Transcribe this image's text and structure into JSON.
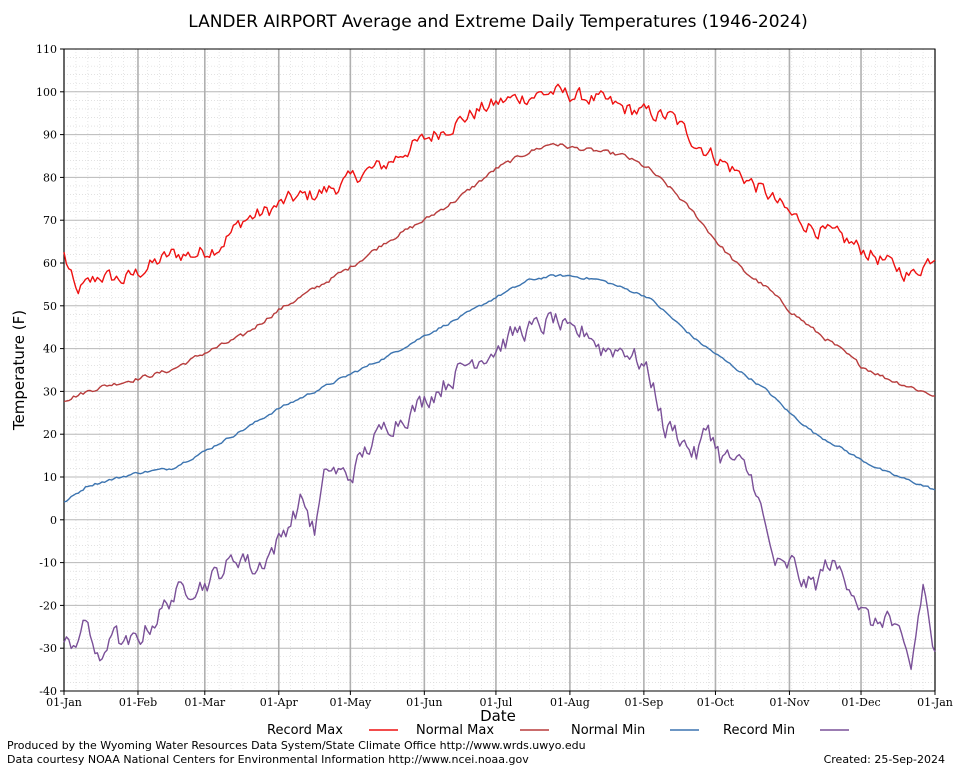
{
  "chart_data": {
    "type": "line",
    "title": "LANDER AIRPORT Average and Extreme Daily Temperatures (1946-2024)",
    "xlabel": "Date",
    "ylabel": "Temperature (F)",
    "ylim": [
      -40,
      110
    ],
    "y_ticks": [
      "110",
      "100",
      "90",
      "80",
      "70",
      "60",
      "50",
      "40",
      "30",
      "20",
      "10",
      "0",
      "-10",
      "-20",
      "-30",
      "-40"
    ],
    "x_ticks": [
      "01-Jan",
      "01-Feb",
      "01-Mar",
      "01-Apr",
      "01-May",
      "01-Jun",
      "01-Jul",
      "01-Aug",
      "01-Sep",
      "01-Oct",
      "01-Nov",
      "01-Dec",
      "01-Jan"
    ],
    "x_tick_days": [
      0,
      31,
      59,
      90,
      120,
      151,
      181,
      212,
      243,
      273,
      304,
      334,
      365
    ],
    "grid": true,
    "legend_placement": "bottom",
    "series": [
      {
        "name": "Record Max",
        "color": "#ee1111",
        "days": [
          0,
          5,
          15,
          25,
          35,
          45,
          55,
          65,
          75,
          85,
          95,
          105,
          115,
          125,
          135,
          145,
          155,
          165,
          175,
          185,
          195,
          205,
          215,
          225,
          235,
          245,
          255,
          265,
          275,
          285,
          295,
          305,
          315,
          325,
          335,
          345,
          355,
          365
        ],
        "values": [
          62,
          53,
          57,
          56,
          59,
          62,
          62,
          64,
          70,
          72,
          75,
          76,
          78,
          81,
          83,
          87,
          90,
          93,
          96,
          98,
          99,
          100,
          99,
          98,
          96,
          95,
          94,
          88,
          84,
          80,
          76,
          71,
          68,
          66,
          63,
          60,
          57,
          62
        ],
        "jitter": 3.0
      },
      {
        "name": "Normal Max",
        "color": "#b83c3c",
        "days": [
          0,
          15,
          31,
          45,
          59,
          75,
          90,
          105,
          120,
          135,
          151,
          165,
          181,
          195,
          205,
          212,
          225,
          235,
          245,
          255,
          265,
          275,
          285,
          295,
          304,
          315,
          325,
          334,
          345,
          355,
          365
        ],
        "values": [
          28,
          31,
          33,
          35,
          39,
          43,
          49,
          54,
          59,
          65,
          70,
          75,
          82,
          86,
          88,
          87,
          86,
          85,
          82,
          77,
          71,
          64,
          58,
          54,
          49,
          44,
          40,
          36,
          33,
          31,
          29
        ],
        "jitter": 0.8
      },
      {
        "name": "Normal Min",
        "color": "#3c74b0",
        "days": [
          0,
          10,
          31,
          45,
          59,
          75,
          90,
          105,
          120,
          135,
          151,
          165,
          181,
          195,
          205,
          212,
          225,
          235,
          245,
          255,
          265,
          275,
          285,
          295,
          304,
          315,
          325,
          334,
          345,
          355,
          365
        ],
        "values": [
          4,
          8,
          11,
          12,
          16,
          21,
          26,
          30,
          34,
          38,
          43,
          47,
          52,
          56,
          57,
          57,
          56,
          54,
          52,
          47,
          42,
          38,
          34,
          30,
          25,
          20,
          17,
          14,
          11,
          9,
          7
        ],
        "jitter": 0.5
      },
      {
        "name": "Record Min",
        "color": "#7a5098",
        "days": [
          0,
          5,
          10,
          15,
          20,
          25,
          31,
          40,
          45,
          55,
          59,
          70,
          75,
          80,
          90,
          95,
          100,
          105,
          110,
          120,
          125,
          135,
          145,
          151,
          160,
          170,
          181,
          190,
          200,
          205,
          212,
          220,
          225,
          235,
          243,
          248,
          252,
          255,
          260,
          265,
          270,
          275,
          280,
          285,
          290,
          295,
          298,
          302,
          305,
          310,
          315,
          320,
          325,
          330,
          335,
          340,
          345,
          350,
          355,
          360,
          365
        ],
        "values": [
          -30,
          -28,
          -24,
          -35,
          -25,
          -30,
          -28,
          -22,
          -18,
          -15,
          -15,
          -10,
          -8,
          -12,
          -5,
          0,
          5,
          -3,
          12,
          10,
          15,
          22,
          25,
          28,
          32,
          37,
          40,
          44,
          45,
          47,
          43,
          44,
          40,
          40,
          36,
          30,
          20,
          22,
          18,
          15,
          22,
          15,
          14,
          12,
          8,
          -5,
          -10,
          -12,
          -10,
          -15,
          -15,
          -10,
          -12,
          -15,
          -22,
          -25,
          -22,
          -28,
          -35,
          -15,
          -32
        ],
        "jitter": 4.0
      }
    ]
  },
  "legend": {
    "record_max": "Record Max",
    "normal_max": "Normal Max",
    "normal_min": "Normal Min",
    "record_min": "Record Min"
  },
  "footer": {
    "produced_by": "Produced by the Wyoming Water Resources Data System/State Climate Office http://www.wrds.uwyo.edu",
    "courtesy": "Data courtesy NOAA National Centers for Environmental Information http://www.ncei.noaa.gov",
    "created": "Created: 25-Sep-2024"
  }
}
